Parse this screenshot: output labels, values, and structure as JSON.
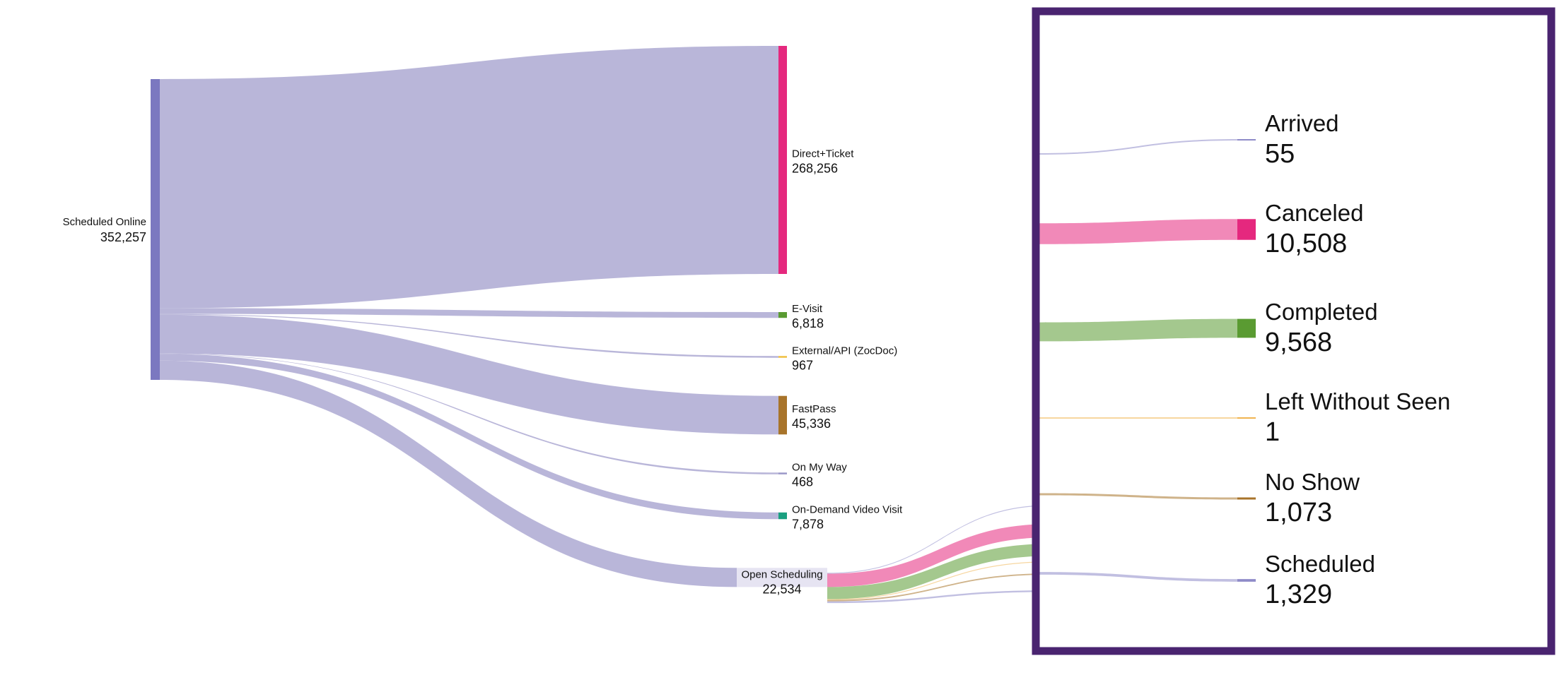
{
  "chart_data": {
    "type": "sankey",
    "title": "",
    "colors": {
      "source": "#7b78c0",
      "link": "#b9b6d9",
      "Direct+Ticket": "#e5287e",
      "E-Visit": "#5a9b32",
      "External/API (ZocDoc)": "#f0c040",
      "FastPass": "#a8742a",
      "On My Way": "#9a98c8",
      "On-Demand Video Visit": "#1aa080",
      "Open Scheduling": "#e6e4f2",
      "Arrived": "#8e8bc8",
      "Canceled": "#e5287e",
      "Completed": "#5a9b32",
      "Left Without Seen": "#f0b450",
      "No Show": "#a8742a",
      "Scheduled": "#8e8bc8",
      "frame": "#4a2470"
    },
    "source": {
      "name": "Scheduled Online",
      "value": 352257,
      "display": "352,257"
    },
    "targets": [
      {
        "name": "Direct+Ticket",
        "value": 268256,
        "display": "268,256"
      },
      {
        "name": "E-Visit",
        "value": 6818,
        "display": "6,818"
      },
      {
        "name": "External/API (ZocDoc)",
        "value": 967,
        "display": "967"
      },
      {
        "name": "FastPass",
        "value": 45336,
        "display": "45,336"
      },
      {
        "name": "On My Way",
        "value": 468,
        "display": "468"
      },
      {
        "name": "On-Demand Video Visit",
        "value": 7878,
        "display": "7,878"
      },
      {
        "name": "Open Scheduling",
        "value": 22534,
        "display": "22,534"
      }
    ],
    "open_scheduling_outcomes": [
      {
        "name": "Arrived",
        "value": 55,
        "display": "55"
      },
      {
        "name": "Canceled",
        "value": 10508,
        "display": "10,508"
      },
      {
        "name": "Completed",
        "value": 9568,
        "display": "9,568"
      },
      {
        "name": "Left Without Seen",
        "value": 1,
        "display": "1"
      },
      {
        "name": "No Show",
        "value": 1073,
        "display": "1,073"
      },
      {
        "name": "Scheduled",
        "value": 1329,
        "display": "1,329"
      }
    ]
  }
}
